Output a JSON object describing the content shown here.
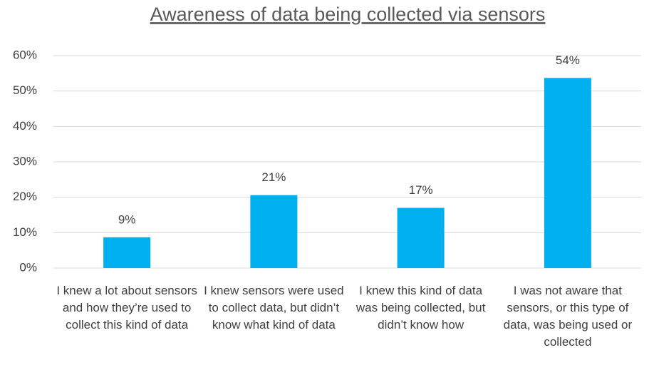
{
  "chart_data": {
    "type": "bar",
    "title": "Awareness of data being collected via sensors",
    "categories": [
      "I knew a lot about sensors and how they’re used to collect this kind of data",
      "I knew sensors were used to collect data, but didn’t know what kind of data",
      "I knew this kind of data was being collected, but didn’t know how",
      "I was not aware that sensors, or this type of data, was being used or collected"
    ],
    "values": [
      8.7,
      20.6,
      17.0,
      53.7
    ],
    "value_labels": [
      "9%",
      "21%",
      "17%",
      "54%"
    ],
    "color": "#00b0f0",
    "ylim": [
      0,
      60
    ],
    "yticks": [
      {
        "value": 0,
        "label": "0%"
      },
      {
        "value": 10,
        "label": "10%"
      },
      {
        "value": 20,
        "label": "20%"
      },
      {
        "value": 30,
        "label": "30%"
      },
      {
        "value": 40,
        "label": "40%"
      },
      {
        "value": 50,
        "label": "50%"
      },
      {
        "value": 60,
        "label": "60%"
      }
    ],
    "grid": true
  }
}
